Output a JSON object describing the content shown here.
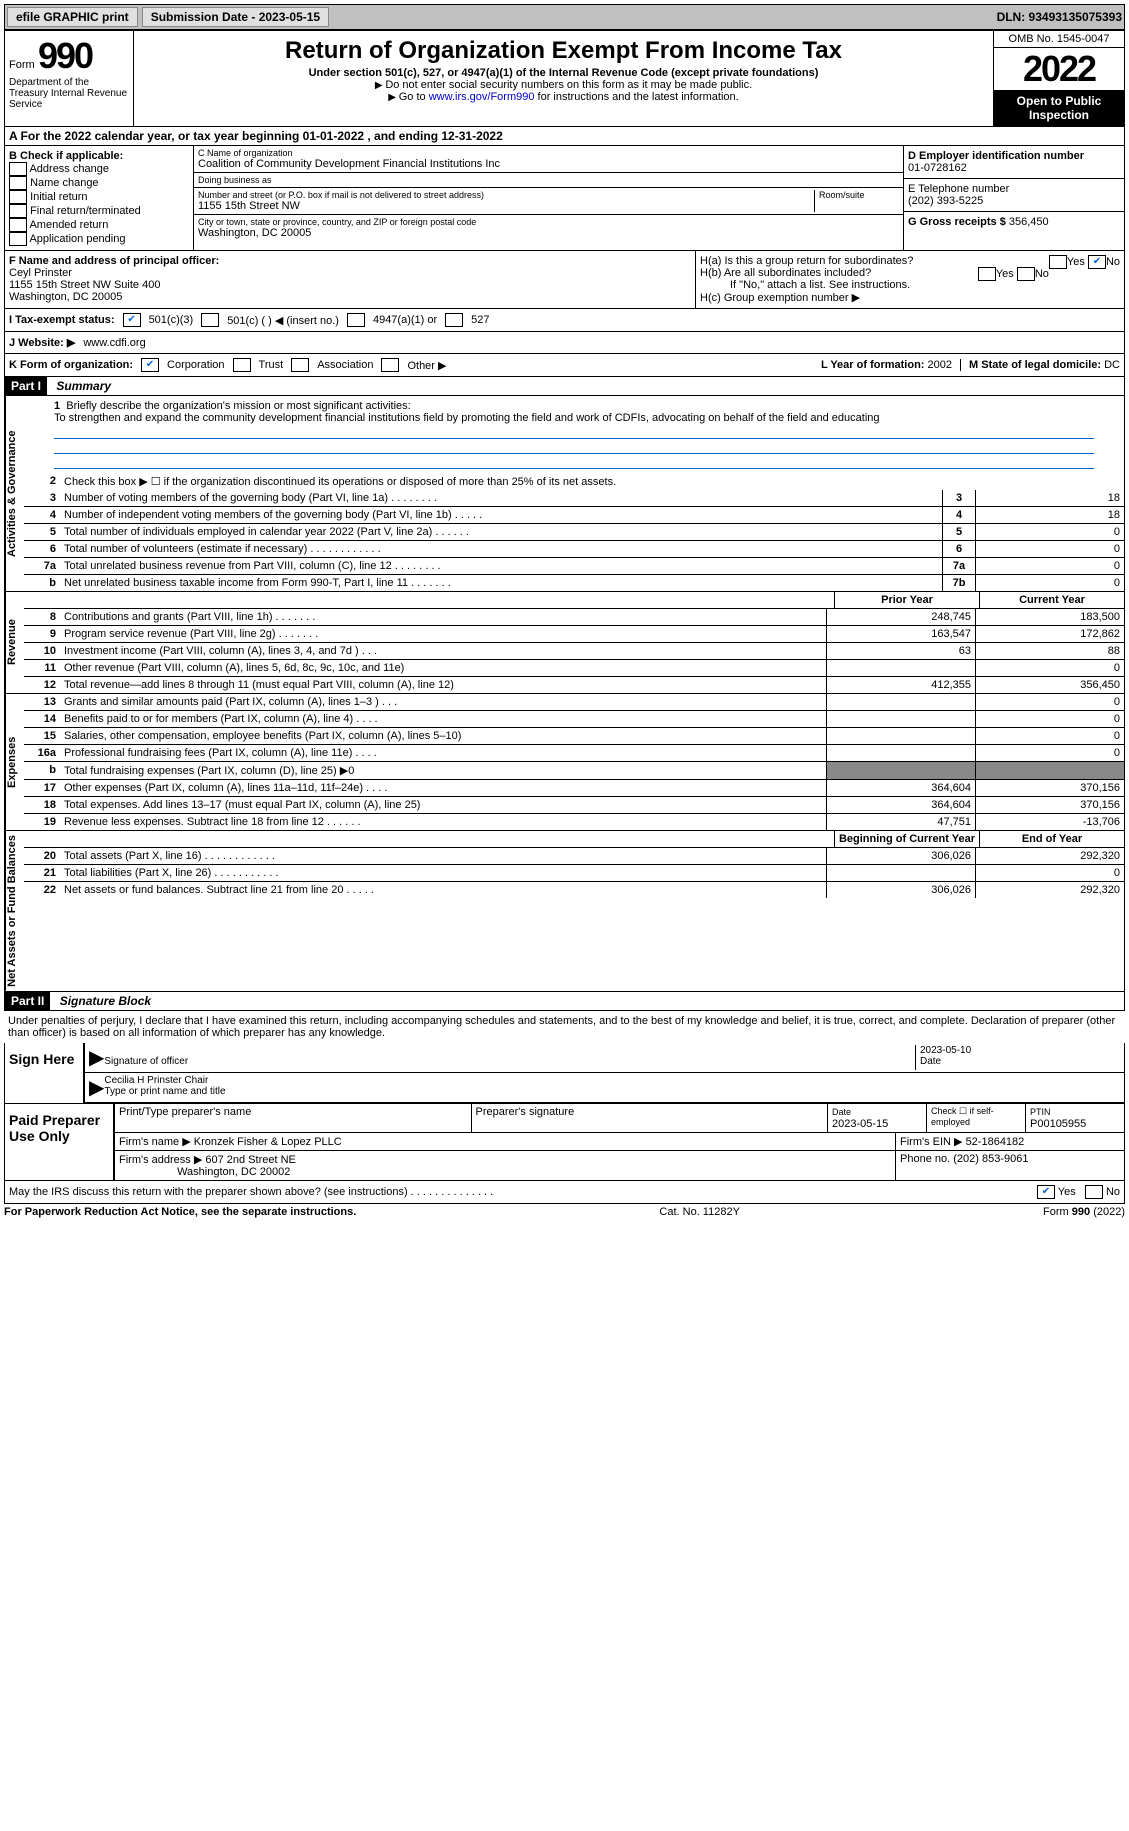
{
  "topbar": {
    "efile": "efile GRAPHIC print",
    "submission_label": "Submission Date - 2023-05-15",
    "dln": "DLN: 93493135075393"
  },
  "header": {
    "form_word": "Form",
    "form_num": "990",
    "dept": "Department of the Treasury\nInternal Revenue Service",
    "title": "Return of Organization Exempt From Income Tax",
    "subtitle": "Under section 501(c), 527, or 4947(a)(1) of the Internal Revenue Code (except private foundations)",
    "note1": "Do not enter social security numbers on this form as it may be made public.",
    "note2_pre": "Go to ",
    "note2_link": "www.irs.gov/Form990",
    "note2_post": " for instructions and the latest information.",
    "omb": "OMB No. 1545-0047",
    "year": "2022",
    "open": "Open to Public Inspection"
  },
  "sec_a": "A For the 2022 calendar year, or tax year beginning 01-01-2022    , and ending 12-31-2022",
  "col_b": {
    "heading": "B Check if applicable:",
    "items": [
      "Address change",
      "Name change",
      "Initial return",
      "Final return/terminated",
      "Amended return",
      "Application pending"
    ]
  },
  "col_c": {
    "name_lbl": "C Name of organization",
    "name": "Coalition of Community Development Financial Institutions Inc",
    "dba_lbl": "Doing business as",
    "dba": "",
    "street_lbl": "Number and street (or P.O. box if mail is not delivered to street address)",
    "street": "1155 15th Street NW",
    "room_lbl": "Room/suite",
    "city_lbl": "City or town, state or province, country, and ZIP or foreign postal code",
    "city": "Washington, DC  20005"
  },
  "col_d": {
    "ein_lbl": "D Employer identification number",
    "ein": "01-0728162",
    "tel_lbl": "E Telephone number",
    "tel": "(202) 393-5225",
    "gross_lbl": "G Gross receipts $",
    "gross": "356,450"
  },
  "block_fh": {
    "f_lbl": "F Name and address of principal officer:",
    "f_name": "Ceyl Prinster",
    "f_addr1": "1155 15th Street NW Suite 400",
    "f_addr2": "Washington, DC  20005",
    "ha": "H(a)  Is this a group return for subordinates?",
    "hb": "H(b)  Are all subordinates included?",
    "hb_note": "If \"No,\" attach a list. See instructions.",
    "hc": "H(c)  Group exemption number ▶",
    "yes": "Yes",
    "no": "No"
  },
  "row_i": {
    "lbl": "I  Tax-exempt status:",
    "o1": "501(c)(3)",
    "o2": "501(c) (  ) ◀ (insert no.)",
    "o3": "4947(a)(1) or",
    "o4": "527"
  },
  "row_j": {
    "lbl": "J  Website: ▶",
    "val": "www.cdfi.org"
  },
  "row_k": {
    "lbl": "K Form of organization:",
    "o1": "Corporation",
    "o2": "Trust",
    "o3": "Association",
    "o4": "Other ▶",
    "l_lbl": "L Year of formation:",
    "l_val": "2002",
    "m_lbl": "M State of legal domicile:",
    "m_val": "DC"
  },
  "part1": {
    "hdr": "Part I",
    "title": "Summary"
  },
  "summary": {
    "vlabel1": "Activities & Governance",
    "vlabel2": "Revenue",
    "vlabel3": "Expenses",
    "vlabel4": "Net Assets or Fund Balances",
    "l1": "Briefly describe the organization's mission or most significant activities:",
    "mission": "To strengthen and expand the community development financial institutions field by promoting the field and work of CDFIs, advocating on behalf of the field and educating",
    "l2": "Check this box ▶ ☐  if the organization discontinued its operations or disposed of more than 25% of its net assets.",
    "lines_ag": [
      {
        "n": "3",
        "d": "Number of voting members of the governing body (Part VI, line 1a)   .    .    .    .    .    .    .    .",
        "b": "3",
        "v": "18"
      },
      {
        "n": "4",
        "d": "Number of independent voting members of the governing body (Part VI, line 1b)   .    .    .    .    .",
        "b": "4",
        "v": "18"
      },
      {
        "n": "5",
        "d": "Total number of individuals employed in calendar year 2022 (Part V, line 2a)   .    .    .    .    .    .",
        "b": "5",
        "v": "0"
      },
      {
        "n": "6",
        "d": "Total number of volunteers (estimate if necessary)    .    .    .    .    .    .    .    .    .    .    .    .",
        "b": "6",
        "v": "0"
      },
      {
        "n": "7a",
        "d": "Total unrelated business revenue from Part VIII, column (C), line 12    .    .    .    .    .    .    .    .",
        "b": "7a",
        "v": "0"
      },
      {
        "n": "b",
        "d": "Net unrelated business taxable income from Form 990-T, Part I, line 11   .    .    .    .    .    .    .",
        "b": "7b",
        "v": "0"
      }
    ],
    "col_prior": "Prior Year",
    "col_current": "Current Year",
    "rev": [
      {
        "n": "8",
        "d": "Contributions and grants (Part VIII, line 1h)   .    .    .    .    .    .    .",
        "p": "248,745",
        "c": "183,500"
      },
      {
        "n": "9",
        "d": "Program service revenue (Part VIII, line 2g)   .    .    .    .    .    .    .",
        "p": "163,547",
        "c": "172,862"
      },
      {
        "n": "10",
        "d": "Investment income (Part VIII, column (A), lines 3, 4, and 7d )   .    .    .",
        "p": "63",
        "c": "88"
      },
      {
        "n": "11",
        "d": "Other revenue (Part VIII, column (A), lines 5, 6d, 8c, 9c, 10c, and 11e)",
        "p": "",
        "c": "0"
      },
      {
        "n": "12",
        "d": "Total revenue—add lines 8 through 11 (must equal Part VIII, column (A), line 12)",
        "p": "412,355",
        "c": "356,450"
      }
    ],
    "exp": [
      {
        "n": "13",
        "d": "Grants and similar amounts paid (Part IX, column (A), lines 1–3 )   .    .    .",
        "p": "",
        "c": "0"
      },
      {
        "n": "14",
        "d": "Benefits paid to or for members (Part IX, column (A), line 4)   .    .    .    .",
        "p": "",
        "c": "0"
      },
      {
        "n": "15",
        "d": "Salaries, other compensation, employee benefits (Part IX, column (A), lines 5–10)",
        "p": "",
        "c": "0"
      },
      {
        "n": "16a",
        "d": "Professional fundraising fees (Part IX, column (A), line 11e)    .    .    .    .",
        "p": "",
        "c": "0"
      },
      {
        "n": "b",
        "d": "Total fundraising expenses (Part IX, column (D), line 25) ▶0",
        "p": "grey",
        "c": "grey"
      },
      {
        "n": "17",
        "d": "Other expenses (Part IX, column (A), lines 11a–11d, 11f–24e)   .    .    .    .",
        "p": "364,604",
        "c": "370,156"
      },
      {
        "n": "18",
        "d": "Total expenses. Add lines 13–17 (must equal Part IX, column (A), line 25)",
        "p": "364,604",
        "c": "370,156"
      },
      {
        "n": "19",
        "d": "Revenue less expenses. Subtract line 18 from line 12   .    .    .    .    .    .",
        "p": "47,751",
        "c": "-13,706"
      }
    ],
    "col_beg": "Beginning of Current Year",
    "col_end": "End of Year",
    "net": [
      {
        "n": "20",
        "d": "Total assets (Part X, line 16)   .    .    .    .    .    .    .    .    .    .    .    .",
        "p": "306,026",
        "c": "292,320"
      },
      {
        "n": "21",
        "d": "Total liabilities (Part X, line 26)   .    .    .    .    .    .    .    .    .    .    .",
        "p": "",
        "c": "0"
      },
      {
        "n": "22",
        "d": "Net assets or fund balances. Subtract line 21 from line 20   .    .    .    .    .",
        "p": "306,026",
        "c": "292,320"
      }
    ]
  },
  "part2": {
    "hdr": "Part II",
    "title": "Signature Block",
    "decl": "Under penalties of perjury, I declare that I have examined this return, including accompanying schedules and statements, and to the best of my knowledge and belief, it is true, correct, and complete. Declaration of preparer (other than officer) is based on all information of which preparer has any knowledge."
  },
  "sign": {
    "here": "Sign Here",
    "sig_lbl": "Signature of officer",
    "date": "2023-05-10",
    "date_lbl": "Date",
    "name": "Cecilia H Prinster  Chair",
    "name_lbl": "Type or print name and title"
  },
  "prep": {
    "title": "Paid Preparer Use Only",
    "c1": "Print/Type preparer's name",
    "c2": "Preparer's signature",
    "c3_lbl": "Date",
    "c3": "2023-05-15",
    "c4": "Check ☐ if self-employed",
    "c5_lbl": "PTIN",
    "c5": "P00105955",
    "firm_lbl": "Firm's name    ▶",
    "firm": "Kronzek Fisher & Lopez PLLC",
    "ein_lbl": "Firm's EIN ▶",
    "ein": "52-1864182",
    "addr_lbl": "Firm's address ▶",
    "addr": "607 2nd Street NE",
    "addr2": "Washington, DC  20002",
    "phone_lbl": "Phone no.",
    "phone": "(202) 853-9061"
  },
  "footer": {
    "discuss": "May the IRS discuss this return with the preparer shown above? (see instructions)   .    .    .    .    .    .    .    .    .    .    .    .    .    .",
    "yes": "Yes",
    "no": "No",
    "pra": "For Paperwork Reduction Act Notice, see the separate instructions.",
    "cat": "Cat. No. 11282Y",
    "form": "Form 990 (2022)"
  }
}
